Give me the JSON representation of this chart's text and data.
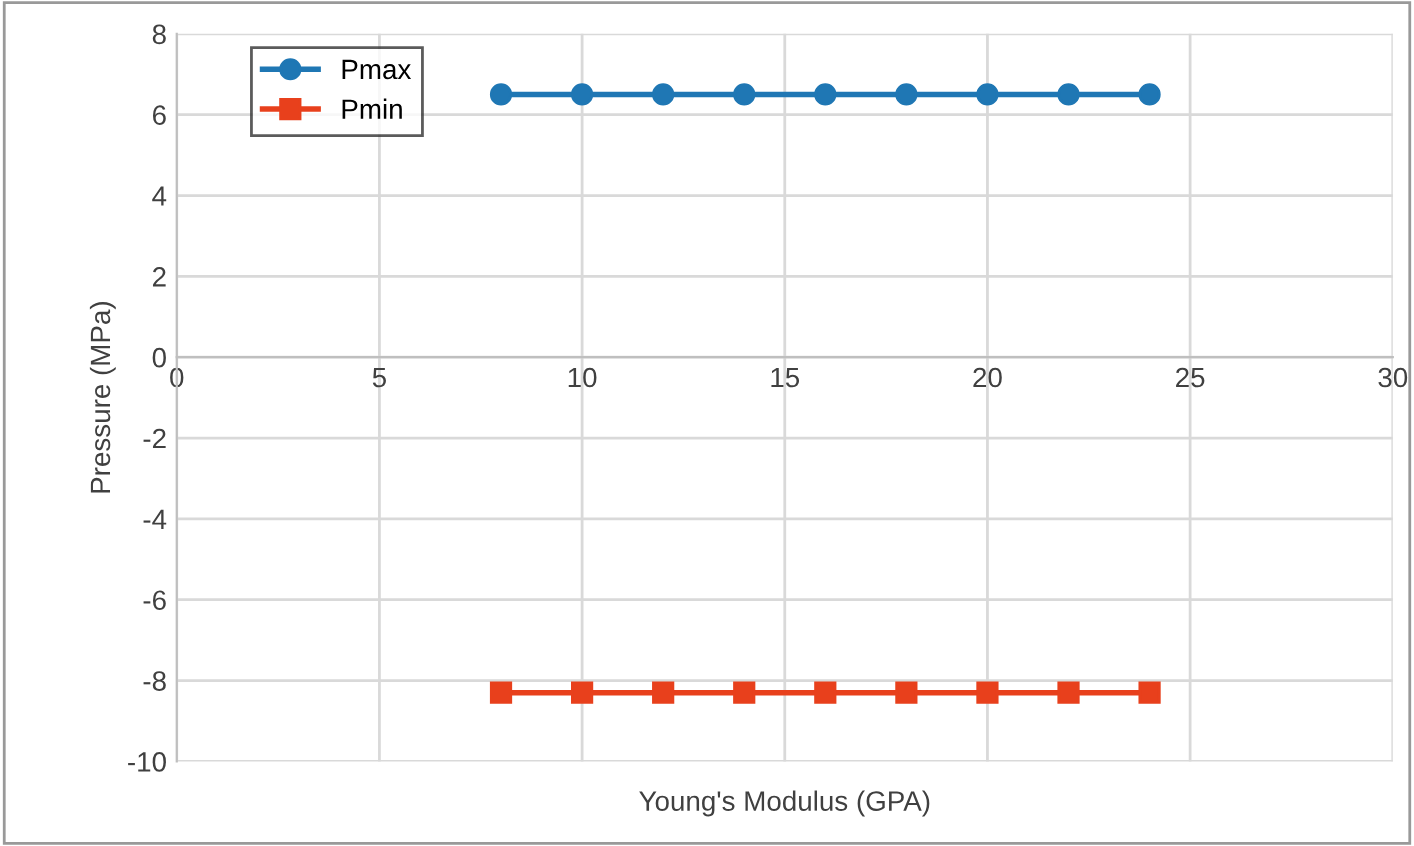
{
  "chart_data": {
    "type": "line",
    "xlabel": "Young's Modulus (GPA)",
    "ylabel": "Pressure (MPa)",
    "x": [
      8,
      10,
      12,
      14,
      16,
      18,
      20,
      22,
      24
    ],
    "series": [
      {
        "name": "Pmax",
        "color": "#1f77b4",
        "marker": "circle",
        "values": [
          6.5,
          6.5,
          6.5,
          6.5,
          6.5,
          6.5,
          6.5,
          6.5,
          6.5
        ]
      },
      {
        "name": "Pmin",
        "color": "#e8401c",
        "marker": "square",
        "values": [
          -8.3,
          -8.3,
          -8.3,
          -8.3,
          -8.3,
          -8.3,
          -8.3,
          -8.3,
          -8.3
        ]
      }
    ],
    "xlim": [
      0,
      30
    ],
    "xticks": [
      0,
      5,
      10,
      15,
      20,
      25,
      30
    ],
    "ylim": [
      -10,
      8
    ],
    "yticks": [
      -10,
      -8,
      -6,
      -4,
      -2,
      0,
      2,
      4,
      6,
      8
    ],
    "grid": true,
    "legend": "top left",
    "line_style": "solid"
  }
}
